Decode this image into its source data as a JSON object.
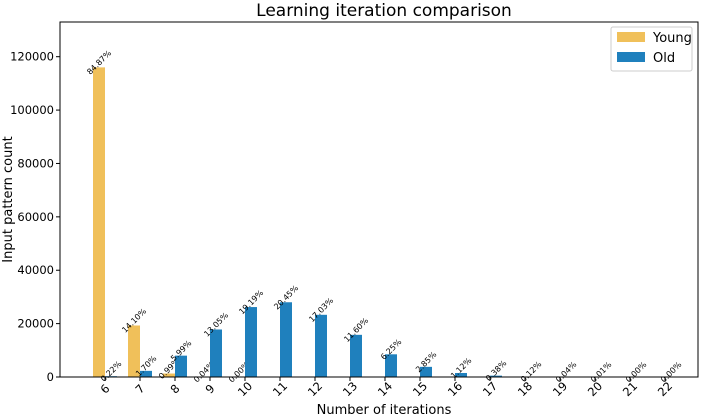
{
  "colors": {
    "young": "#f0c05a",
    "old": "#1f80bd"
  },
  "chart_data": {
    "type": "bar",
    "title": "Learning iteration comparison",
    "xlabel": "Number of iterations",
    "ylabel": "Input pattern count",
    "ylim": [
      0,
      133000
    ],
    "yticks": [
      0,
      20000,
      40000,
      60000,
      80000,
      100000,
      120000
    ],
    "ytick_labels": [
      "0",
      "20000",
      "40000",
      "60000",
      "80000",
      "100000",
      "120000"
    ],
    "legend_position": "top-right",
    "grid": false,
    "categories": [
      "6",
      "7",
      "8",
      "9",
      "10",
      "11",
      "12",
      "13",
      "14",
      "15",
      "16",
      "17",
      "18",
      "19",
      "20",
      "21",
      "22"
    ],
    "series": [
      {
        "name": "Young",
        "color": "#f0c05a",
        "values": [
          116000,
          19300,
          1300,
          50,
          0,
          0,
          0,
          0,
          0,
          0,
          0,
          0,
          0,
          0,
          0,
          0,
          0
        ],
        "labels": [
          "84.87%",
          "14.10%",
          "0.99%",
          "0.04%",
          "0.00%",
          "",
          "",
          "",
          "",
          "",
          "",
          "",
          "",
          "",
          "",
          "",
          ""
        ]
      },
      {
        "name": "Old",
        "color": "#1f80bd",
        "values": [
          300,
          2300,
          8000,
          17800,
          26200,
          28000,
          23300,
          15800,
          8500,
          3800,
          1500,
          510,
          160,
          55,
          14,
          5,
          3
        ],
        "labels": [
          "0.22%",
          "1.70%",
          "5.99%",
          "13.05%",
          "19.19%",
          "20.45%",
          "17.03%",
          "11.60%",
          "6.25%",
          "2.85%",
          "1.12%",
          "0.38%",
          "0.12%",
          "0.04%",
          "0.01%",
          "0.00%",
          "0.00%"
        ]
      }
    ]
  }
}
